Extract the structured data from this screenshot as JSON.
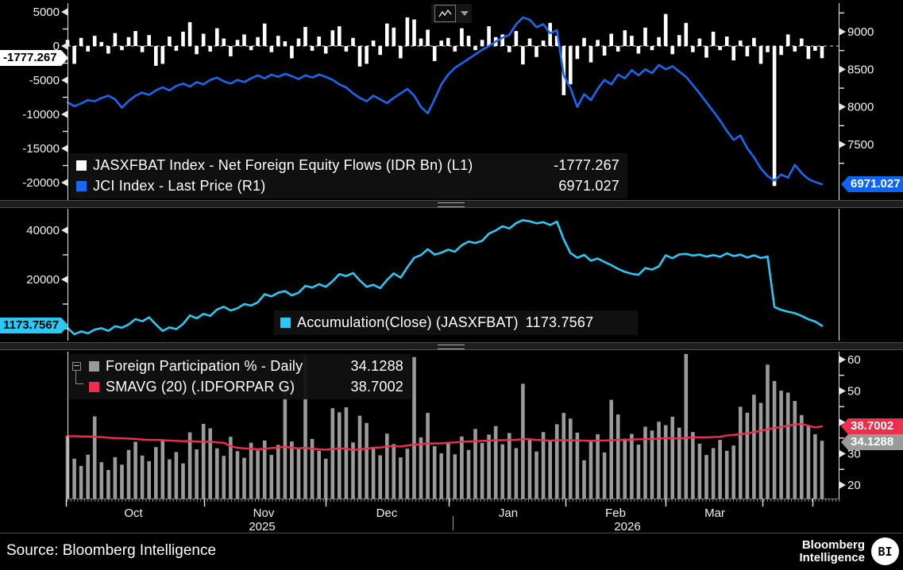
{
  "panels": {
    "top": {
      "legend": [
        {
          "label": "JASXFBAT Index - Net Foreign Equity Flows (IDR Bn) (L1)",
          "value": "-1777.267",
          "color": "#ffffff"
        },
        {
          "label": "JCI Index - Last Price (R1)",
          "value": "6971.027",
          "color": "#1868f2"
        }
      ],
      "left_callout": "-1777.267",
      "right_callout": "6971.027"
    },
    "middle": {
      "legend": [
        {
          "label": "Accumulation(Close) (JASXFBAT)",
          "value": "1173.7567",
          "color": "#2ac9f5"
        }
      ],
      "left_callout": "1173.7567"
    },
    "bottom": {
      "legend": [
        {
          "label": "Foreign Participation % - Daily",
          "value": "34.1288",
          "color": "#9a9a9a"
        },
        {
          "label": "SMAVG (20) (.IDFORPAR G)",
          "value": "38.7002",
          "color": "#ee2e4c"
        }
      ],
      "right_callout_smavg": "38.7002",
      "right_callout_daily": "34.1288"
    }
  },
  "x_axis": {
    "months": [
      "Oct",
      "Nov",
      "Dec",
      "Jan",
      "Feb",
      "Mar"
    ],
    "years": [
      "2025",
      "2026"
    ]
  },
  "footer": {
    "source": "Source: Bloomberg Intelligence",
    "brand_line1": "Bloomberg",
    "brand_line2": "Intelligence",
    "logo_text": "BI"
  },
  "chart_data": [
    {
      "type": "bar",
      "panel": "top",
      "legend_position": "bottom-left inside plot",
      "grid": false,
      "series": [
        {
          "name": "JASXFBAT Index - Net Foreign Equity Flows (IDR Bn) (L1)",
          "type": "bar",
          "axis": "left",
          "color": "#ffffff",
          "last": -1777.267,
          "values": [
            900,
            -2600,
            1200,
            -800,
            1500,
            600,
            -1100,
            1900,
            -600,
            1300,
            2200,
            -900,
            1600,
            -2900,
            -2600,
            1400,
            -700,
            2100,
            3500,
            -1200,
            1800,
            -800,
            2600,
            1100,
            -1500,
            900,
            1700,
            -600,
            1300,
            3300,
            -900,
            1500,
            700,
            -1800,
            1100,
            2800,
            -700,
            1400,
            -1100,
            2300,
            2900,
            -800,
            1200,
            -3000,
            -2600,
            800,
            -1300,
            3300,
            2700,
            -1800,
            4200,
            3900,
            1100,
            2400,
            -2200,
            800,
            1200,
            -800,
            2600,
            1500,
            -600,
            900,
            2900,
            1300,
            1700,
            -900,
            2200,
            -2700,
            1100,
            -1600,
            800,
            3400,
            1500,
            -7200,
            -5600,
            -1900,
            1200,
            -2400,
            900,
            -1400,
            1800,
            -800,
            2300,
            1500,
            -1100,
            2700,
            -600,
            1300,
            4700,
            -1200,
            1600,
            3400,
            -900,
            1100,
            -1700,
            2100,
            -600,
            1400,
            -2100,
            800,
            -1500,
            1200,
            -2600,
            -900,
            -20500,
            -1300,
            1700,
            -800,
            1100,
            -1900,
            -700,
            -1777.267
          ]
        },
        {
          "name": "JCI Index - Last Price (R1)",
          "type": "line",
          "axis": "right",
          "color": "#1868f2",
          "last": 6971.027,
          "values": [
            8060,
            8010,
            8045,
            8090,
            8075,
            8120,
            8150,
            8100,
            7990,
            8080,
            8150,
            8190,
            8160,
            8220,
            8260,
            8220,
            8280,
            8310,
            8270,
            8330,
            8300,
            8360,
            8390,
            8340,
            8310,
            8360,
            8330,
            8380,
            8420,
            8380,
            8430,
            8400,
            8440,
            8410,
            8370,
            8420,
            8390,
            8430,
            8400,
            8360,
            8300,
            8260,
            8180,
            8120,
            8075,
            8150,
            8100,
            8050,
            8120,
            8180,
            8240,
            8150,
            8000,
            7915,
            8100,
            8300,
            8430,
            8520,
            8580,
            8640,
            8700,
            8760,
            8810,
            8870,
            8920,
            8960,
            9100,
            9190,
            9160,
            9060,
            9100,
            8980,
            9020,
            8420,
            8250,
            8000,
            8170,
            8090,
            8240,
            8360,
            8300,
            8430,
            8380,
            8490,
            8420,
            8500,
            8450,
            8560,
            8500,
            8540,
            8470,
            8400,
            8290,
            8180,
            8060,
            7940,
            7820,
            7680,
            7560,
            7620,
            7450,
            7330,
            7180,
            7080,
            7020,
            7100,
            7060,
            7230,
            7120,
            7040,
            7000,
            6971.027
          ]
        }
      ],
      "left_axis": {
        "ticks": [
          5000,
          0,
          -5000,
          -10000,
          -15000,
          -20000
        ],
        "range": [
          -22500,
          6700
        ]
      },
      "right_axis": {
        "ticks": [
          9000,
          8500,
          8000,
          7500
        ],
        "range": [
          6770,
          9420
        ]
      },
      "zero_line": true
    },
    {
      "type": "line",
      "panel": "middle",
      "grid": false,
      "series": [
        {
          "name": "Accumulation(Close) (JASXFBAT)",
          "type": "line",
          "axis": "left",
          "color": "#2ac9f5",
          "last": 1173.7567,
          "values": [
            300,
            -2300,
            -1100,
            -1900,
            -400,
            200,
            -900,
            1000,
            400,
            1700,
            3900,
            3000,
            4600,
            1700,
            -900,
            500,
            -200,
            1900,
            5400,
            4200,
            6000,
            5200,
            7800,
            8900,
            7400,
            8300,
            10000,
            9400,
            10700,
            14000,
            13100,
            14600,
            15300,
            13500,
            14600,
            17400,
            16700,
            18100,
            17000,
            19300,
            22200,
            21400,
            22600,
            19600,
            17000,
            17800,
            16500,
            19800,
            22500,
            20700,
            24900,
            28800,
            29900,
            32300,
            30100,
            30900,
            32100,
            31300,
            33900,
            35400,
            34800,
            35700,
            38600,
            39900,
            41600,
            40700,
            42900,
            44100,
            43600,
            42800,
            43300,
            42100,
            43500,
            36300,
            30700,
            28800,
            30000,
            27600,
            28500,
            27100,
            25800,
            24300,
            23100,
            22300,
            21900,
            24600,
            24000,
            25300,
            29800,
            28600,
            30200,
            30400,
            29700,
            30100,
            29300,
            29900,
            29200,
            30600,
            29500,
            30100,
            28900,
            29800,
            28700,
            29300,
            8800,
            7600,
            6900,
            6300,
            5200,
            3800,
            2900,
            1173.7567
          ]
        }
      ],
      "left_axis": {
        "ticks": [
          40000,
          20000
        ],
        "range": [
          -5000,
          49000
        ]
      }
    },
    {
      "type": "bar",
      "panel": "bottom",
      "grid": false,
      "series": [
        {
          "name": "Foreign Participation % - Daily",
          "type": "bar",
          "axis": "right",
          "color": "#9a9a9a",
          "last": 34.1288,
          "values": [
            35.8,
            28.4,
            26.1,
            29.7,
            41.9,
            27.3,
            24.8,
            28.9,
            26.5,
            31.2,
            33.8,
            29.4,
            27.6,
            32.1,
            34.6,
            28.2,
            30.5,
            26.9,
            36.8,
            31.4,
            39.5,
            38.1,
            31.7,
            29.3,
            35.4,
            30.8,
            28.7,
            33.5,
            31.0,
            34.2,
            29.6,
            32.8,
            50.5,
            33.9,
            31.5,
            61.5,
            34.7,
            30.9,
            28.4,
            44.5,
            43.2,
            44.8,
            33.6,
            42.1,
            39.8,
            31.9,
            29.5,
            36.4,
            33.1,
            28.8,
            31.6,
            60.8,
            35.2,
            43.0,
            32.4,
            30.1,
            33.7,
            29.8,
            35.5,
            31.2,
            37.9,
            33.4,
            36.1,
            38.8,
            33.0,
            36.6,
            31.8,
            52.3,
            34.5,
            30.7,
            36.9,
            34.0,
            39.4,
            43.0,
            41.2,
            36.7,
            27.9,
            33.8,
            36.2,
            30.4,
            47.2,
            42.5,
            34.8,
            36.3,
            32.9,
            38.6,
            37.4,
            40.2,
            39.1,
            41.8,
            38.3,
            61.8,
            36.9,
            33.2,
            29.6,
            31.8,
            34.4,
            30.9,
            32.6,
            45.0,
            43.1,
            48.8,
            46.2,
            58.4,
            53.2,
            50.1,
            49.5,
            46.8,
            42.3,
            38.9,
            36.2,
            34.1288
          ]
        },
        {
          "name": "SMAVG (20) (.IDFORPAR G)",
          "type": "line",
          "axis": "right",
          "color": "#ee2e4c",
          "last": 38.7002,
          "values": [
            35.6,
            35.6,
            35.5,
            35.5,
            35.4,
            35.3,
            35.1,
            35.0,
            34.9,
            34.8,
            34.7,
            34.5,
            34.4,
            34.4,
            34.3,
            34.2,
            34.1,
            34.0,
            34.0,
            33.9,
            33.8,
            33.8,
            33.6,
            33.5,
            32.4,
            31.9,
            31.7,
            31.6,
            31.4,
            31.6,
            31.8,
            32.0,
            32.2,
            31.9,
            31.7,
            31.9,
            31.6,
            31.4,
            31.3,
            31.5,
            31.7,
            31.6,
            31.2,
            31.4,
            31.6,
            31.9,
            32.0,
            32.3,
            32.4,
            32.3,
            32.6,
            32.9,
            33.0,
            33.2,
            33.3,
            33.3,
            33.5,
            33.6,
            33.8,
            33.9,
            34.0,
            34.1,
            34.2,
            34.3,
            34.3,
            34.4,
            34.4,
            34.7,
            34.6,
            34.4,
            34.3,
            34.2,
            34.3,
            34.3,
            34.3,
            34.2,
            34.2,
            34.1,
            34.2,
            34.2,
            34.3,
            34.4,
            34.4,
            34.5,
            34.6,
            34.6,
            34.7,
            34.8,
            35.0,
            34.9,
            34.8,
            35.1,
            35.2,
            35.2,
            35.2,
            35.3,
            35.4,
            35.8,
            36.0,
            36.2,
            36.5,
            36.9,
            37.3,
            37.8,
            38.2,
            38.5,
            38.9,
            39.3,
            39.5,
            38.9,
            38.4,
            38.7002
          ]
        }
      ],
      "right_axis": {
        "ticks": [
          60,
          50,
          40,
          30,
          20
        ],
        "range": [
          15,
          62.5
        ]
      }
    }
  ]
}
